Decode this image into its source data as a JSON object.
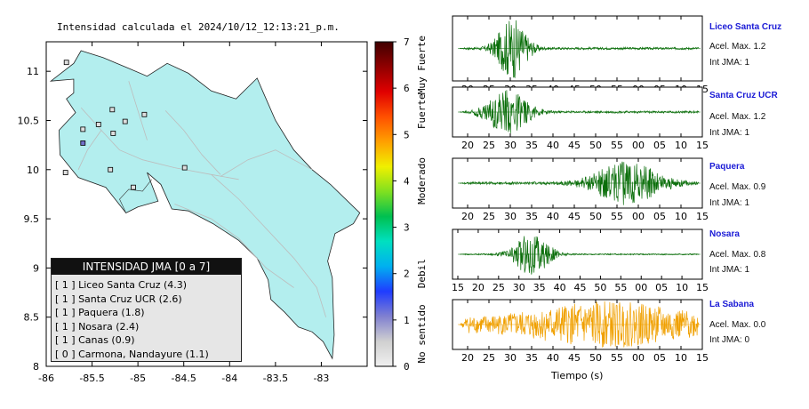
{
  "map": {
    "title": "Intensidad calculada el 2024/10/12_12:13:21_p.m.",
    "x_ticks": [
      "-86",
      "-85.5",
      "-85",
      "-84.5",
      "-84",
      "-83.5",
      "-83"
    ],
    "y_ticks": [
      "11",
      "10.5",
      "10",
      "9.5",
      "9",
      "8.5",
      "8"
    ],
    "land_color": "#b3eeee",
    "stations": [
      {
        "lon": -85.78,
        "lat": 11.09,
        "color": "#dedede"
      },
      {
        "lon": -85.28,
        "lat": 10.61,
        "color": "#dedede"
      },
      {
        "lon": -85.43,
        "lat": 10.46,
        "color": "#dedede"
      },
      {
        "lon": -85.14,
        "lat": 10.49,
        "color": "#dedede"
      },
      {
        "lon": -84.93,
        "lat": 10.56,
        "color": "#dedede"
      },
      {
        "lon": -85.6,
        "lat": 10.41,
        "color": "#dedede"
      },
      {
        "lon": -85.6,
        "lat": 10.27,
        "color": "#7070c8"
      },
      {
        "lon": -85.79,
        "lat": 9.97,
        "color": "#dedede"
      },
      {
        "lon": -85.27,
        "lat": 10.37,
        "color": "#dedede"
      },
      {
        "lon": -85.3,
        "lat": 10.0,
        "color": "#dedede"
      },
      {
        "lon": -85.05,
        "lat": 9.82,
        "color": "#dedede"
      },
      {
        "lon": -84.49,
        "lat": 10.02,
        "color": "#dedede"
      }
    ]
  },
  "colorbar": {
    "ticks": [
      "7",
      "6",
      "5",
      "4",
      "3",
      "2",
      "1",
      "0"
    ],
    "labels": [
      "Muy Fuerte",
      "Fuerte",
      "Moderado",
      "Debil",
      "No sentido"
    ]
  },
  "legend": {
    "title": "INTENSIDAD JMA [0 a 7]",
    "rows": [
      "[ 1 ]  Liceo Santa Cruz (4.3)",
      "[ 1 ]  Santa Cruz UCR (2.6)",
      "[ 1 ]  Paquera (1.8)",
      "[ 1 ]  Nosara (2.4)",
      "[ 1 ]  Canas (0.9)",
      "[ 0 ]  Carmona, Nandayure (1.1)"
    ]
  },
  "chart_data": {
    "type": "line",
    "xlabel": "Tiempo (s)",
    "panels": [
      {
        "name": "Liceo Santa Cruz",
        "accel": "Acel. Max. 1.2",
        "jma": "Int JMA: 1",
        "color": "#0a6e0a",
        "ticks": [
          "20",
          "25",
          "30",
          "35",
          "40",
          "45",
          "50",
          "55",
          "00",
          "05",
          "10",
          "15"
        ],
        "burst_center": 0.22,
        "burst_width": 0.1,
        "amplitude": 1.0,
        "noise": 0.04
      },
      {
        "name": "Santa Cruz UCR",
        "accel": "Acel. Max. 1.2",
        "jma": "Int JMA: 1",
        "color": "#0a6e0a",
        "ticks": [
          "20",
          "25",
          "30",
          "35",
          "40",
          "45",
          "50",
          "55",
          "00",
          "05",
          "10",
          "15"
        ],
        "burst_center": 0.2,
        "burst_width": 0.14,
        "amplitude": 0.95,
        "noise": 0.05
      },
      {
        "name": "Paquera",
        "accel": "Acel. Max. 0.9",
        "jma": "Int JMA: 1",
        "color": "#0a6e0a",
        "ticks": [
          "20",
          "25",
          "30",
          "35",
          "40",
          "45",
          "50",
          "55",
          "00",
          "05",
          "10",
          "15"
        ],
        "burst_center": 0.7,
        "burst_width": 0.22,
        "amplitude": 0.95,
        "noise": 0.06
      },
      {
        "name": "Nosara",
        "accel": "Acel. Max. 0.8",
        "jma": "Int JMA: 1",
        "color": "#0a6e0a",
        "ticks": [
          "15",
          "20",
          "25",
          "30",
          "35",
          "40",
          "45",
          "50",
          "55",
          "00",
          "05",
          "10",
          "15"
        ],
        "burst_center": 0.3,
        "burst_width": 0.12,
        "amplitude": 0.95,
        "noise": 0.03
      },
      {
        "name": "La Sabana",
        "accel": "Acel. Max. 0.0",
        "jma": "Int JMA: 0",
        "color": "#f0a000",
        "ticks": [
          "20",
          "25",
          "30",
          "35",
          "40",
          "45",
          "50",
          "55",
          "00",
          "05",
          "10",
          "15"
        ],
        "burst_center": 0.62,
        "burst_width": 0.5,
        "amplitude": 0.7,
        "noise": 0.35
      }
    ]
  }
}
